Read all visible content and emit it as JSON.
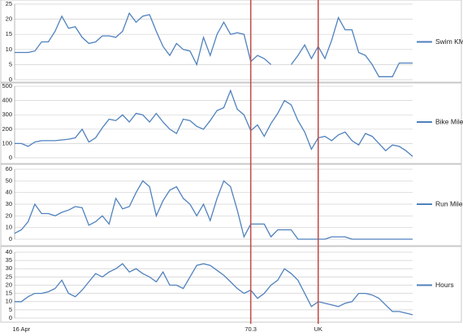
{
  "chart_data": [
    {
      "type": "line",
      "ylim": [
        0,
        25
      ],
      "yticks": [
        0,
        5,
        10,
        15,
        20,
        25
      ],
      "grid": true,
      "series": [
        {
          "name": "Swim KM",
          "color": "#4f81bd",
          "values": [
            9,
            9,
            9,
            9.5,
            12.5,
            12.5,
            16,
            21,
            17,
            17.5,
            14,
            12,
            12.5,
            14.5,
            14.5,
            14,
            16,
            22,
            19,
            21,
            21.5,
            16,
            11,
            8,
            12,
            10,
            9.5,
            5,
            14,
            8,
            15,
            19,
            15,
            15.5,
            15,
            6,
            8,
            7,
            5,
            null,
            null,
            5,
            8,
            11.5,
            7,
            11,
            7,
            13,
            20.5,
            16.5,
            16.5,
            9,
            8,
            5,
            1,
            1,
            1,
            5.5,
            5.5,
            5.5
          ]
        }
      ]
    },
    {
      "type": "line",
      "ylim": [
        0,
        500
      ],
      "yticks": [
        0,
        100,
        200,
        300,
        400,
        500
      ],
      "grid": true,
      "series": [
        {
          "name": "Bike Miles",
          "color": "#4f81bd",
          "values": [
            100,
            100,
            80,
            110,
            120,
            120,
            120,
            125,
            130,
            140,
            200,
            110,
            140,
            210,
            270,
            260,
            300,
            250,
            310,
            300,
            250,
            310,
            250,
            200,
            170,
            270,
            260,
            220,
            200,
            260,
            330,
            350,
            470,
            340,
            300,
            190,
            230,
            150,
            240,
            310,
            400,
            370,
            260,
            180,
            60,
            140,
            150,
            120,
            160,
            180,
            120,
            90,
            170,
            150,
            100,
            50,
            90,
            80,
            50,
            10
          ]
        }
      ]
    },
    {
      "type": "line",
      "ylim": [
        0,
        60
      ],
      "yticks": [
        0,
        10,
        20,
        30,
        40,
        50,
        60
      ],
      "grid": true,
      "series": [
        {
          "name": "Run Miles",
          "color": "#4f81bd",
          "values": [
            5,
            8,
            15,
            30,
            22,
            22,
            20,
            23,
            25,
            28,
            27,
            12,
            15,
            20,
            13,
            35,
            26,
            28,
            40,
            50,
            45,
            20,
            33,
            42,
            45,
            35,
            30,
            20,
            30,
            16,
            35,
            50,
            45,
            25,
            2,
            13,
            13,
            13,
            2,
            8,
            8,
            8,
            0,
            0,
            0,
            0,
            0,
            2,
            2,
            2,
            0,
            0,
            0,
            0,
            0,
            0,
            0,
            0,
            0,
            0
          ]
        }
      ]
    },
    {
      "type": "line",
      "ylim": [
        0,
        40
      ],
      "yticks": [
        0,
        5,
        10,
        15,
        20,
        25,
        30,
        35,
        40
      ],
      "grid": true,
      "categories": [
        null,
        "16 Apr",
        null,
        null,
        null,
        null,
        null,
        null,
        null,
        null,
        null,
        null,
        null,
        null,
        null,
        null,
        null,
        null,
        null,
        null,
        null,
        null,
        null,
        null,
        null,
        null,
        null,
        null,
        null,
        null,
        null,
        null,
        null,
        null,
        null,
        "70.3",
        null,
        null,
        null,
        null,
        null,
        null,
        null,
        null,
        null,
        "UK",
        null,
        null,
        null,
        null,
        null,
        null,
        null,
        null,
        null,
        null,
        null,
        null,
        null,
        null
      ],
      "markers": {
        "categories": [
          "70.3",
          "UK"
        ],
        "color": "#c0504d"
      },
      "series": [
        {
          "name": "Hours",
          "color": "#4f81bd",
          "values": [
            10,
            10,
            13,
            15,
            15,
            16,
            18,
            23,
            15,
            13,
            17,
            22,
            27,
            25,
            28,
            30,
            33,
            28,
            30,
            27,
            25,
            22,
            28,
            20,
            20,
            18,
            25,
            32,
            33,
            32,
            29,
            26,
            22,
            18,
            15,
            17,
            12,
            15,
            20,
            23,
            30,
            27,
            23,
            15,
            7,
            10,
            9,
            8,
            7,
            9,
            10,
            15,
            15,
            14,
            12,
            8,
            4,
            4,
            3,
            2
          ]
        }
      ]
    }
  ]
}
